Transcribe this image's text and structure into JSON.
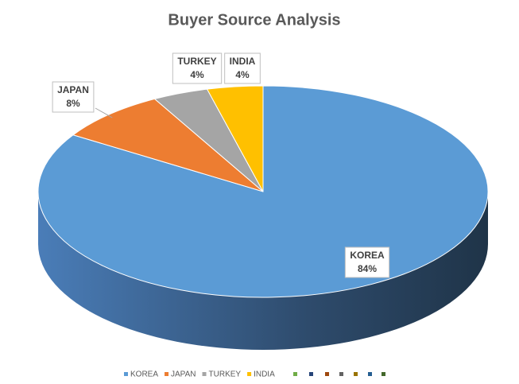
{
  "chart_data": {
    "type": "pie3d",
    "title": "Buyer Source Analysis",
    "categories": [
      "KOREA",
      "JAPAN",
      "TURKEY",
      "INDIA"
    ],
    "values": [
      84,
      8,
      4,
      4
    ],
    "value_labels": [
      "84%",
      "8%",
      "4%",
      "4%"
    ],
    "colors": [
      "#5b9bd5",
      "#ed7d31",
      "#a5a5a5",
      "#ffc000"
    ],
    "legend": "bottom"
  }
}
